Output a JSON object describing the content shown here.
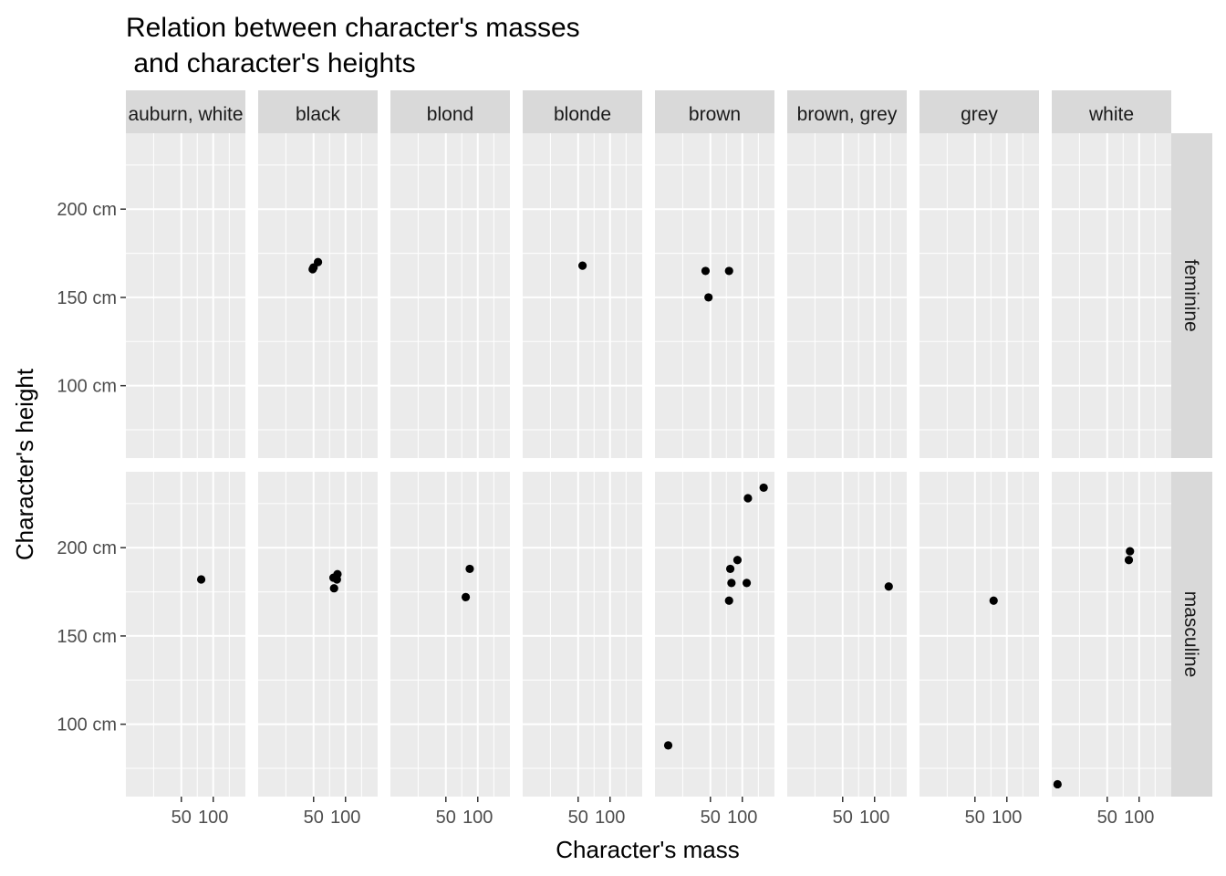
{
  "chart_data": {
    "type": "scatter",
    "title_line1": "Relation between character's masses",
    "title_line2": " and character's heights",
    "xlabel": "Character's mass",
    "ylabel": "Character's height",
    "facet_cols": [
      "auburn, white",
      "black",
      "blond",
      "blonde",
      "brown",
      "brown, grey",
      "grey",
      "white"
    ],
    "facet_rows": [
      "feminine",
      "masculine"
    ],
    "x_scale": "log10",
    "xlim": [
      15,
      201
    ],
    "ylim": [
      59,
      243
    ],
    "x_ticks": [
      50,
      100
    ],
    "x_tick_labels": [
      "50",
      "100"
    ],
    "y_ticks": [
      100,
      150,
      200
    ],
    "y_tick_labels": [
      "100 cm",
      "150 cm",
      "200 cm"
    ],
    "grid": true,
    "panels": [
      {
        "hair": "black",
        "gender": "feminine",
        "points": [
          [
            49,
            166
          ],
          [
            55,
            170
          ],
          [
            50,
            167
          ]
        ]
      },
      {
        "hair": "blonde",
        "gender": "feminine",
        "points": [
          [
            55,
            168
          ]
        ]
      },
      {
        "hair": "brown",
        "gender": "feminine",
        "points": [
          [
            45,
            165
          ],
          [
            75,
            165
          ],
          [
            48,
            150
          ]
        ]
      },
      {
        "hair": "auburn, white",
        "gender": "masculine",
        "points": [
          [
            77,
            182
          ]
        ]
      },
      {
        "hair": "black",
        "gender": "masculine",
        "points": [
          [
            77,
            183
          ],
          [
            78,
            177
          ],
          [
            80,
            183
          ],
          [
            83,
            182
          ],
          [
            84,
            185
          ]
        ]
      },
      {
        "hair": "blond",
        "gender": "masculine",
        "points": [
          [
            77,
            172
          ],
          [
            84,
            188
          ]
        ]
      },
      {
        "hair": "brown",
        "gender": "masculine",
        "points": [
          [
            20,
            88
          ],
          [
            75,
            170
          ],
          [
            77,
            188
          ],
          [
            79,
            180
          ],
          [
            90,
            193
          ],
          [
            110,
            180
          ],
          [
            113,
            228
          ],
          [
            159,
            234
          ]
        ]
      },
      {
        "hair": "brown, grey",
        "gender": "masculine",
        "points": [
          [
            136,
            178
          ]
        ]
      },
      {
        "hair": "grey",
        "gender": "masculine",
        "points": [
          [
            75,
            170
          ]
        ]
      },
      {
        "hair": "white",
        "gender": "masculine",
        "points": [
          [
            17,
            66
          ],
          [
            80,
            193
          ],
          [
            82,
            198
          ]
        ]
      }
    ]
  }
}
